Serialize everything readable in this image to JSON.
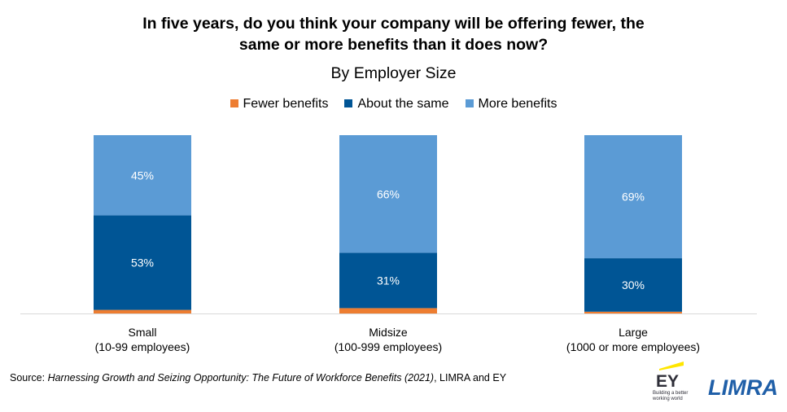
{
  "chart_data": {
    "type": "bar",
    "stacked": true,
    "title": "In five years, do you think your company will be offering fewer, the same or more benefits than it does now?",
    "title_lines": [
      "In five years, do you think your company will be offering fewer, the",
      "same or more benefits than it does now?"
    ],
    "subtitle": "By Employer Size",
    "categories": [
      "Small (10-99 employees)",
      "Midsize (100-999 employees)",
      "Large (1000 or more employees)"
    ],
    "category_lines": [
      [
        "Small",
        "(10-99 employees)"
      ],
      [
        "Midsize",
        "(100-999 employees)"
      ],
      [
        "Large",
        "(1000 or more employees)"
      ]
    ],
    "series": [
      {
        "name": "Fewer benefits",
        "values": [
          2,
          3,
          1
        ],
        "color": "#ED7D31",
        "labels": [
          "",
          "",
          ""
        ]
      },
      {
        "name": "About the same",
        "values": [
          53,
          31,
          30
        ],
        "color": "#005595",
        "labels": [
          "53%",
          "31%",
          "30%"
        ]
      },
      {
        "name": "More benefits",
        "values": [
          45,
          66,
          69
        ],
        "color": "#5B9BD5",
        "labels": [
          "45%",
          "66%",
          "69%"
        ]
      }
    ],
    "ylim": [
      0,
      100
    ],
    "grid": false,
    "legend_position": "top",
    "xlabel": "",
    "ylabel": ""
  },
  "source": {
    "prefix": "Source: ",
    "title": "Harnessing Growth and Seizing Opportunity: The Future of Workforce Benefits (2021)",
    "suffix": ", LIMRA and EY"
  },
  "logos": {
    "ey": {
      "text": "EY",
      "tagline_1": "Building a better",
      "tagline_2": "working world",
      "accent": "#FFE600"
    },
    "limra": {
      "text": "LIMRA",
      "color": "#1F5FA8"
    }
  }
}
